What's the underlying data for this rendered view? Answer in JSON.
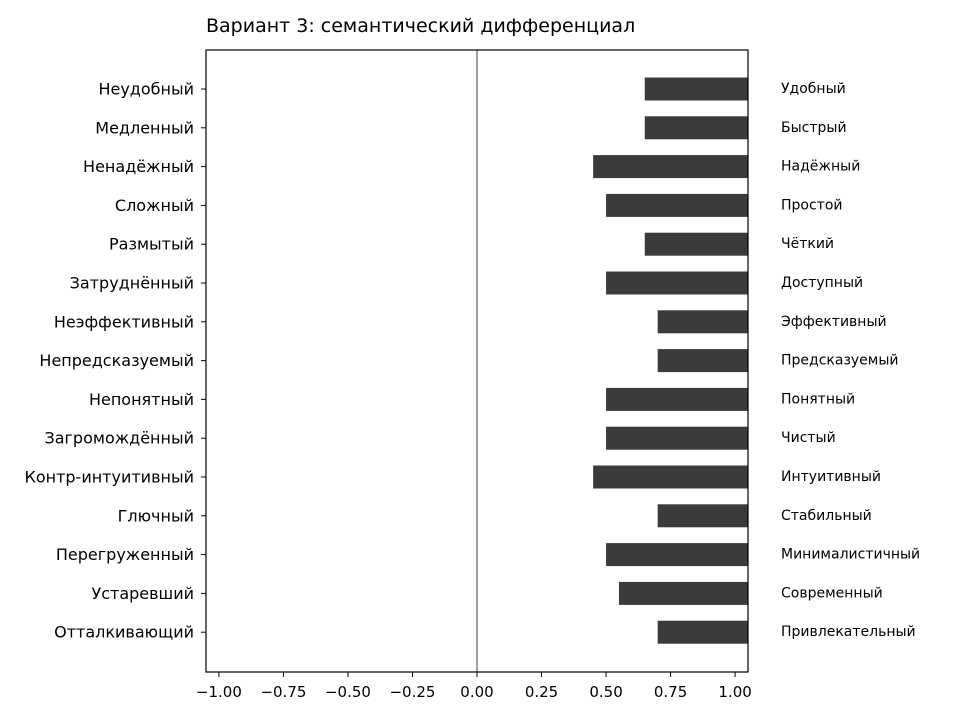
{
  "chart_data": {
    "type": "bar",
    "orientation": "horizontal",
    "title": "Вариант 3: семантический дифференциал",
    "xlabel": "",
    "ylabel": "",
    "xlim": [
      -1.05,
      1.05
    ],
    "x_ticks": [
      "−1.00",
      "−0.75",
      "−0.50",
      "−0.25",
      "0.00",
      "0.25",
      "0.50",
      "0.75",
      "1.00"
    ],
    "x_tick_values": [
      -1.0,
      -0.75,
      -0.5,
      -0.25,
      0.0,
      0.25,
      0.5,
      0.75,
      1.0
    ],
    "grid": false,
    "bar_color": "#3b3b3b",
    "zero_line_color": "#808080",
    "left_labels": [
      "Неудобный",
      "Медленный",
      "Ненадёжный",
      "Сложный",
      "Размытый",
      "Затруднённый",
      "Неэффективный",
      "Непредсказуемый",
      "Непонятный",
      "Загромождённый",
      "Контр-интуитивный",
      "Глючный",
      "Перегруженный",
      "Устаревший",
      "Отталкивающий"
    ],
    "right_labels": [
      "Удобный",
      "Быстрый",
      "Надёжный",
      "Простой",
      "Чёткий",
      "Доступный",
      "Эффективный",
      "Предсказуемый",
      "Понятный",
      "Чистый",
      "Интуитивный",
      "Стабильный",
      "Минималистичный",
      "Современный",
      "Привлекательный"
    ],
    "values": [
      0.65,
      0.65,
      0.45,
      0.5,
      0.65,
      0.5,
      0.7,
      0.7,
      0.5,
      0.5,
      0.45,
      0.7,
      0.5,
      0.55,
      0.7
    ],
    "bar_end": 1.05
  }
}
